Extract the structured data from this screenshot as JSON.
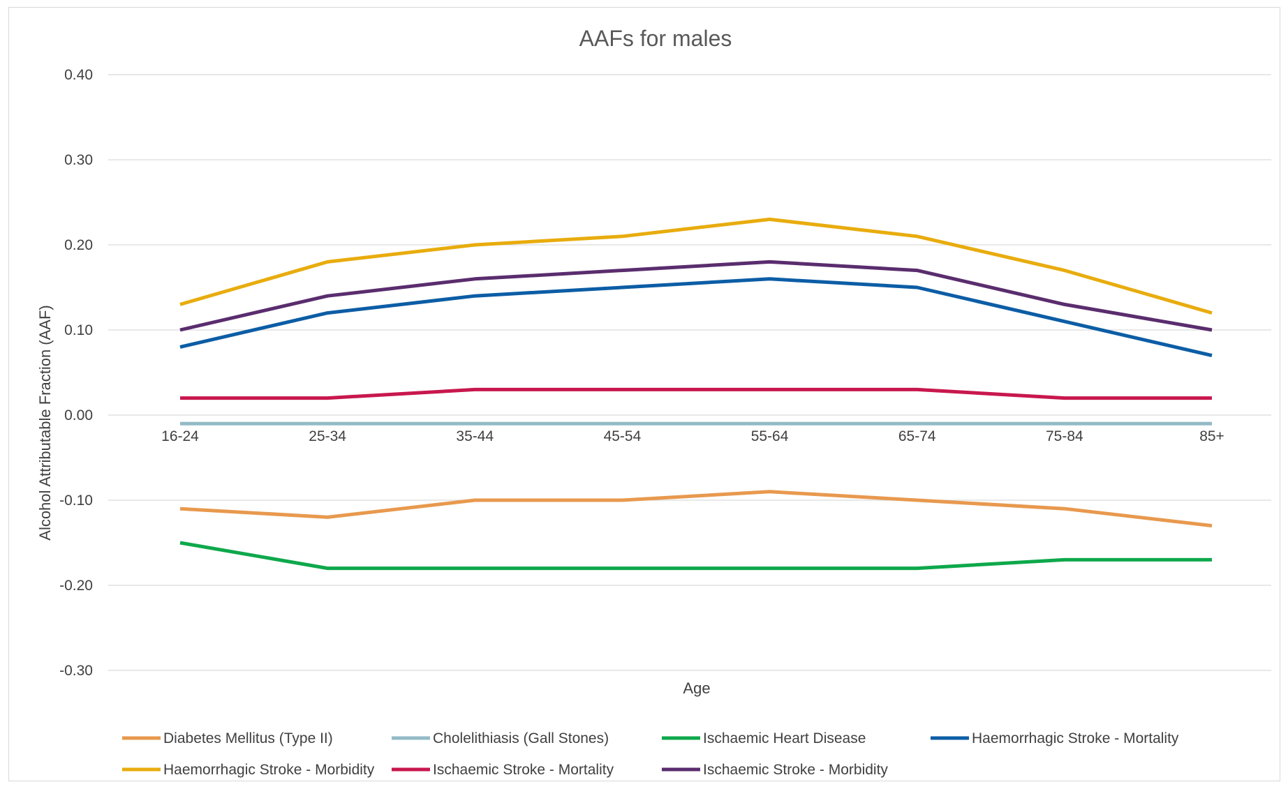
{
  "chart_data": {
    "type": "line",
    "title": "AAFs for males",
    "xlabel": "Age",
    "ylabel": "Alcohol Attributable Fraction (AAF)",
    "ylim": [
      -0.3,
      0.4
    ],
    "ytick_step": 0.1,
    "grid": true,
    "legend_position": "bottom",
    "categories": [
      "16-24",
      "25-34",
      "35-44",
      "45-54",
      "55-64",
      "65-74",
      "75-84",
      "85+"
    ],
    "series": [
      {
        "name": "Diabetes Mellitus (Type II)",
        "color": "#E8994E",
        "values": [
          -0.11,
          -0.12,
          -0.1,
          -0.1,
          -0.09,
          -0.1,
          -0.11,
          -0.13
        ]
      },
      {
        "name": "Cholelithiasis (Gall Stones)",
        "color": "#93BBC6",
        "values": [
          -0.01,
          -0.01,
          -0.01,
          -0.01,
          -0.01,
          -0.01,
          -0.01,
          -0.01
        ]
      },
      {
        "name": "Ischaemic Heart Disease",
        "color": "#0EA84B",
        "values": [
          -0.15,
          -0.18,
          -0.18,
          -0.18,
          -0.18,
          -0.18,
          -0.17,
          -0.17
        ]
      },
      {
        "name": "Haemorrhagic Stroke - Mortality",
        "color": "#0C5DA5",
        "values": [
          0.08,
          0.12,
          0.14,
          0.15,
          0.16,
          0.15,
          0.11,
          0.07
        ]
      },
      {
        "name": "Haemorrhagic Stroke - Morbidity",
        "color": "#E8AC0E",
        "values": [
          0.13,
          0.18,
          0.2,
          0.21,
          0.23,
          0.21,
          0.17,
          0.12
        ]
      },
      {
        "name": "Ischaemic Stroke - Mortality",
        "color": "#C8174E",
        "values": [
          0.02,
          0.02,
          0.03,
          0.03,
          0.03,
          0.03,
          0.02,
          0.02
        ]
      },
      {
        "name": "Ischaemic Stroke - Morbidity",
        "color": "#5A2D6E",
        "values": [
          0.1,
          0.14,
          0.16,
          0.17,
          0.18,
          0.17,
          0.13,
          0.1
        ]
      }
    ]
  }
}
